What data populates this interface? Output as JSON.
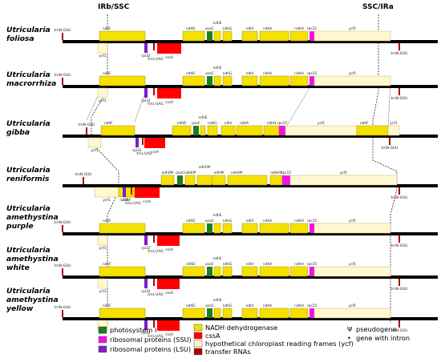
{
  "header": {
    "left": "IRb/SSC",
    "right": "SSC/IRa"
  },
  "colors": {
    "ndh": "#f5e000",
    "ycf": "#fff8d0",
    "psa": "#1e7d1e",
    "rps": "#f012e4",
    "rpl": "#7a1fc8",
    "css": "#ff0000",
    "trn": "#b00000",
    "line": "#000000"
  },
  "tracks": [
    {
      "name_lines": [
        "Utricularia",
        "foliosa"
      ],
      "blocks": [
        {
          "t": "ycf",
          "side": "b",
          "label": "ycf1",
          "la": "c",
          "s": 122,
          "e": 134
        },
        {
          "t": "trn",
          "side": "t",
          "label": "trnN-GUU",
          "la": "a",
          "s": 77,
          "e": 79
        },
        {
          "t": "ndh",
          "side": "t",
          "label": "ndhF",
          "la": "a",
          "s": 124,
          "e": 181
        },
        {
          "t": "rpl",
          "side": "b",
          "label": "rpl32",
          "la": "b",
          "s": 180,
          "e": 184
        },
        {
          "t": "trn",
          "side": "b",
          "label": "trnL-UAG",
          "la": "b",
          "s": 191,
          "e": 193
        },
        {
          "t": "css",
          "side": "b",
          "label": "",
          "la": "b",
          "s": 196,
          "e": 226
        },
        {
          "t": "ndh",
          "side": "t",
          "label": "ndhD",
          "la": "a",
          "s": 228,
          "e": 255
        },
        {
          "t": "psa",
          "side": "t",
          "label": "psaC",
          "la": "a",
          "s": 258,
          "e": 265
        },
        {
          "t": "ndh",
          "side": "t",
          "label": "ndhE",
          "la": "b",
          "s": 267,
          "e": 275
        },
        {
          "t": "ndh",
          "side": "t",
          "label": "ndhG",
          "la": "a",
          "s": 278,
          "e": 289
        },
        {
          "t": "ndh",
          "side": "t",
          "label": "ndhI",
          "la": "a",
          "s": 302,
          "e": 321
        },
        {
          "t": "ndh",
          "side": "t",
          "label": "ndhA",
          "la": "a",
          "s": 324,
          "e": 360
        },
        {
          "t": "ndh",
          "side": "t",
          "label": "ndhH",
          "la": "a",
          "s": 362,
          "e": 384
        },
        {
          "t": "rps",
          "side": "t",
          "label": "rps15",
          "la": "a",
          "s": 386,
          "e": 392
        },
        {
          "t": "ycf",
          "side": "t",
          "label": "ycf1",
          "la": "a",
          "s": 392,
          "e": 487
        },
        {
          "t": "trn",
          "side": "b",
          "label": "trnN-GUU",
          "la": "b",
          "s": 497,
          "e": 499
        }
      ],
      "extra": {
        "text": "cssA",
        "x": 211
      }
    },
    {
      "name_lines": [
        "Utricularia",
        "macrorrhiza"
      ],
      "blocks": [
        {
          "t": "ycf",
          "side": "b",
          "label": "ycf1",
          "la": "c",
          "s": 122,
          "e": 134
        },
        {
          "t": "trn",
          "side": "t",
          "label": "trnN-GUU",
          "la": "a",
          "s": 77,
          "e": 79
        },
        {
          "t": "ndh",
          "side": "t",
          "label": "ndhF",
          "la": "a",
          "s": 124,
          "e": 181
        },
        {
          "t": "rpl",
          "side": "b",
          "label": "rpl32",
          "la": "b",
          "s": 180,
          "e": 184
        },
        {
          "t": "trn",
          "side": "b",
          "label": "trnL-UAG",
          "la": "b",
          "s": 191,
          "e": 193
        },
        {
          "t": "css",
          "side": "b",
          "label": "",
          "la": "b",
          "s": 196,
          "e": 226
        },
        {
          "t": "ndh",
          "side": "t",
          "label": "ndhD",
          "la": "a",
          "s": 228,
          "e": 255
        },
        {
          "t": "psa",
          "side": "t",
          "label": "psaC",
          "la": "a",
          "s": 258,
          "e": 265
        },
        {
          "t": "ndh",
          "side": "t",
          "label": "ndhE",
          "la": "b",
          "s": 267,
          "e": 275
        },
        {
          "t": "ndh",
          "side": "t",
          "label": "ndhG",
          "la": "a",
          "s": 278,
          "e": 289
        },
        {
          "t": "ndh",
          "side": "t",
          "label": "ndhI",
          "la": "a",
          "s": 302,
          "e": 321
        },
        {
          "t": "ndh",
          "side": "t",
          "label": "ndhA",
          "la": "a",
          "s": 324,
          "e": 360
        },
        {
          "t": "ndh",
          "side": "t",
          "label": "ndhH",
          "la": "a",
          "s": 362,
          "e": 384
        },
        {
          "t": "rps",
          "side": "t",
          "label": "rps15",
          "la": "a",
          "s": 386,
          "e": 392
        },
        {
          "t": "ycf",
          "side": "t",
          "label": "ycf1",
          "la": "a",
          "s": 392,
          "e": 487
        },
        {
          "t": "trn",
          "side": "b",
          "label": "trnN-GUU",
          "la": "b",
          "s": 497,
          "e": 499
        }
      ],
      "extra": {
        "text": "cssA",
        "x": 211
      }
    },
    {
      "name_lines": [
        "Utricularia",
        "gibba"
      ],
      "blocks": [
        {
          "t": "ycf",
          "side": "b",
          "label": "ycf1",
          "la": "c",
          "s": 110,
          "e": 126
        },
        {
          "t": "trn",
          "side": "t",
          "label": "trnN-GUU",
          "la": "a",
          "s": 107,
          "e": 109
        },
        {
          "t": "ndh",
          "side": "t",
          "label": "ndhF",
          "la": "a",
          "s": 126,
          "e": 168
        },
        {
          "t": "rpl",
          "side": "b",
          "label": "rpl32",
          "la": "b",
          "s": 169,
          "e": 173
        },
        {
          "t": "trn",
          "side": "b",
          "label": "trnL-UAG",
          "la": "b",
          "s": 177,
          "e": 179
        },
        {
          "t": "css",
          "side": "b",
          "label": "",
          "la": "b",
          "s": 180,
          "e": 206
        },
        {
          "t": "ndh",
          "side": "t",
          "label": "ndhD",
          "la": "a",
          "s": 215,
          "e": 238
        },
        {
          "t": "psa",
          "side": "t",
          "label": "psaC",
          "la": "a",
          "s": 241,
          "e": 248
        },
        {
          "t": "ndh",
          "side": "t",
          "label": "ndhE",
          "la": "b",
          "s": 250,
          "e": 256
        },
        {
          "t": "ndh",
          "side": "t",
          "label": "ndhG",
          "la": "a",
          "s": 259,
          "e": 271
        },
        {
          "t": "ndh",
          "side": "t",
          "label": "ndhI",
          "la": "a",
          "s": 276,
          "e": 293
        },
        {
          "t": "ndh",
          "side": "t",
          "label": "ndhA",
          "la": "a",
          "s": 295,
          "e": 327
        },
        {
          "t": "ndh",
          "side": "t",
          "label": "ndhH",
          "la": "a",
          "s": 329,
          "e": 348
        },
        {
          "t": "rps",
          "side": "t",
          "label": "rps15",
          "la": "a",
          "s": 348,
          "e": 356
        },
        {
          "t": "ycf",
          "side": "t",
          "label": "ycf1",
          "la": "a",
          "s": 356,
          "e": 445
        },
        {
          "t": "ndh",
          "side": "t",
          "label": "ndhF",
          "la": "a",
          "s": 445,
          "e": 484
        },
        {
          "t": "ycf",
          "side": "t",
          "label": "ycf1",
          "la": "a",
          "s": 484,
          "e": 498
        },
        {
          "t": "trn",
          "side": "b",
          "label": "trnN-GUU",
          "la": "b",
          "s": 485,
          "e": 487
        }
      ],
      "extra": {
        "text": "cssA",
        "x": 193
      }
    },
    {
      "name_lines": [
        "Utricularia",
        "reniformis"
      ],
      "blocks": [
        {
          "t": "ycf",
          "side": "b",
          "label": "ycf1",
          "la": "c",
          "s": 118,
          "e": 148
        },
        {
          "t": "trn",
          "side": "t",
          "label": "trnN-GUU",
          "la": "a",
          "s": 103,
          "e": 105
        },
        {
          "t": "ndh",
          "side": "b",
          "label": "ndhF",
          "la": "b",
          "s": 148,
          "e": 168
        },
        {
          "t": "rpl",
          "side": "b",
          "label": "rpl32",
          "la": "b",
          "s": 153,
          "e": 157
        },
        {
          "t": "trn",
          "side": "b",
          "label": "trnL-UAG",
          "la": "b",
          "s": 163,
          "e": 165
        },
        {
          "t": "css",
          "side": "b",
          "label": "",
          "la": "b",
          "s": 168,
          "e": 199
        },
        {
          "t": "ndh",
          "side": "t",
          "label": "ndhDΨ",
          "la": "a",
          "s": 201,
          "e": 217
        },
        {
          "t": "psa",
          "side": "t",
          "label": "psaC",
          "la": "a",
          "s": 221,
          "e": 228
        },
        {
          "t": "ndh",
          "side": "t",
          "label": "ndhEΨ",
          "la": "a",
          "s": 231,
          "e": 243
        },
        {
          "t": "ndh",
          "side": "t",
          "label": "ndhGΨ",
          "la": "b",
          "s": 246,
          "e": 264
        },
        {
          "t": "ndh",
          "side": "t",
          "label": "ndhIΨ",
          "la": "a",
          "s": 265,
          "e": 281
        },
        {
          "t": "ndh",
          "side": "t",
          "label": "ndhAΨ",
          "la": "a",
          "s": 284,
          "e": 333
        },
        {
          "t": "ndh",
          "side": "t",
          "label": "ndhHΨ",
          "la": "a",
          "s": 337,
          "e": 352
        },
        {
          "t": "rps",
          "side": "t",
          "label": "rps15",
          "la": "a",
          "s": 352,
          "e": 362
        },
        {
          "t": "ycf",
          "side": "t",
          "label": "ycf1",
          "la": "a",
          "s": 362,
          "e": 495
        },
        {
          "t": "trn",
          "side": "b",
          "label": "trnN-GUU",
          "la": "b",
          "s": 497,
          "e": 499
        }
      ],
      "extra": {
        "text": "cssA",
        "x": 183
      }
    },
    {
      "name_lines": [
        "Utricularia",
        "amethystina",
        "purple"
      ],
      "blocks": [
        {
          "t": "ycf",
          "side": "b",
          "label": "ycf1",
          "la": "c",
          "s": 122,
          "e": 134
        },
        {
          "t": "trn",
          "side": "t",
          "label": "trnN-GUU",
          "la": "a",
          "s": 77,
          "e": 79
        },
        {
          "t": "ndh",
          "side": "t",
          "label": "ndhF",
          "la": "a",
          "s": 124,
          "e": 181
        },
        {
          "t": "rpl",
          "side": "b",
          "label": "rpl32",
          "la": "b",
          "s": 180,
          "e": 184
        },
        {
          "t": "trn",
          "side": "b",
          "label": "trnL-UAG",
          "la": "b",
          "s": 191,
          "e": 193
        },
        {
          "t": "css",
          "side": "b",
          "label": "",
          "la": "b",
          "s": 196,
          "e": 224
        },
        {
          "t": "ndh",
          "side": "t",
          "label": "ndhD",
          "la": "a",
          "s": 228,
          "e": 255
        },
        {
          "t": "psa",
          "side": "t",
          "label": "psaC",
          "la": "a",
          "s": 258,
          "e": 265
        },
        {
          "t": "ndh",
          "side": "t",
          "label": "ndhE",
          "la": "b",
          "s": 267,
          "e": 275
        },
        {
          "t": "ndh",
          "side": "t",
          "label": "ndhG",
          "la": "a",
          "s": 278,
          "e": 289
        },
        {
          "t": "ndh",
          "side": "t",
          "label": "ndhI",
          "la": "a",
          "s": 302,
          "e": 321
        },
        {
          "t": "ndh",
          "side": "t",
          "label": "ndhA",
          "la": "a",
          "s": 324,
          "e": 360
        },
        {
          "t": "ndh",
          "side": "t",
          "label": "ndhH",
          "la": "a",
          "s": 362,
          "e": 384
        },
        {
          "t": "rps",
          "side": "t",
          "label": "rps15",
          "la": "a",
          "s": 386,
          "e": 392
        },
        {
          "t": "ycf",
          "side": "t",
          "label": "ycf1",
          "la": "a",
          "s": 392,
          "e": 487
        },
        {
          "t": "trn",
          "side": "b",
          "label": "trnN-GUU",
          "la": "b",
          "s": 497,
          "e": 499
        }
      ],
      "extra": {
        "text": "cssA",
        "x": 211
      }
    },
    {
      "name_lines": [
        "Utricularia",
        "amethystina",
        "white"
      ],
      "blocks": [
        {
          "t": "ycf",
          "side": "b",
          "label": "ycf1",
          "la": "c",
          "s": 122,
          "e": 134
        },
        {
          "t": "trn",
          "side": "t",
          "label": "trnN-GUU",
          "la": "a",
          "s": 77,
          "e": 79
        },
        {
          "t": "ndh",
          "side": "t",
          "label": "ndhF",
          "la": "a",
          "s": 124,
          "e": 181
        },
        {
          "t": "rpl",
          "side": "b",
          "label": "rpl32",
          "la": "b",
          "s": 180,
          "e": 184
        },
        {
          "t": "trn",
          "side": "b",
          "label": "trnL-UAG",
          "la": "b",
          "s": 191,
          "e": 193
        },
        {
          "t": "css",
          "side": "b",
          "label": "",
          "la": "b",
          "s": 196,
          "e": 224
        },
        {
          "t": "ndh",
          "side": "t",
          "label": "ndhD",
          "la": "a",
          "s": 228,
          "e": 255
        },
        {
          "t": "psa",
          "side": "t",
          "label": "psaC",
          "la": "a",
          "s": 258,
          "e": 265
        },
        {
          "t": "ndh",
          "side": "t",
          "label": "ndhE",
          "la": "b",
          "s": 267,
          "e": 275
        },
        {
          "t": "ndh",
          "side": "t",
          "label": "ndhG",
          "la": "a",
          "s": 278,
          "e": 289
        },
        {
          "t": "ndh",
          "side": "t",
          "label": "ndhI",
          "la": "a",
          "s": 302,
          "e": 321
        },
        {
          "t": "ndh",
          "side": "t",
          "label": "ndhA",
          "la": "a",
          "s": 324,
          "e": 360
        },
        {
          "t": "ndh",
          "side": "t",
          "label": "ndhH",
          "la": "a",
          "s": 362,
          "e": 384
        },
        {
          "t": "rps",
          "side": "t",
          "label": "rps15",
          "la": "a",
          "s": 386,
          "e": 392
        },
        {
          "t": "ycf",
          "side": "t",
          "label": "ycf1",
          "la": "a",
          "s": 392,
          "e": 487
        },
        {
          "t": "trn",
          "side": "b",
          "label": "trnN-GUU",
          "la": "b",
          "s": 497,
          "e": 499
        }
      ],
      "extra": {
        "text": "cssA",
        "x": 211
      }
    },
    {
      "name_lines": [
        "Utricularia",
        "amethystina",
        "yellow"
      ],
      "blocks": [
        {
          "t": "ycf",
          "side": "b",
          "label": "ycf1",
          "la": "c",
          "s": 122,
          "e": 134
        },
        {
          "t": "trn",
          "side": "t",
          "label": "trnN-GUU",
          "la": "a",
          "s": 77,
          "e": 79
        },
        {
          "t": "ndh",
          "side": "t",
          "label": "ndhF",
          "la": "a",
          "s": 124,
          "e": 181
        },
        {
          "t": "rpl",
          "side": "b",
          "label": "rpl32",
          "la": "b",
          "s": 180,
          "e": 184
        },
        {
          "t": "trn",
          "side": "b",
          "label": "trnL-UAG",
          "la": "b",
          "s": 191,
          "e": 193
        },
        {
          "t": "css",
          "side": "b",
          "label": "",
          "la": "b",
          "s": 196,
          "e": 224
        },
        {
          "t": "ndh",
          "side": "t",
          "label": "ndhD",
          "la": "a",
          "s": 228,
          "e": 255
        },
        {
          "t": "psa",
          "side": "t",
          "label": "psaC",
          "la": "a",
          "s": 258,
          "e": 265
        },
        {
          "t": "ndh",
          "side": "t",
          "label": "ndhE",
          "la": "b",
          "s": 267,
          "e": 275
        },
        {
          "t": "ndh",
          "side": "t",
          "label": "ndhG",
          "la": "a",
          "s": 278,
          "e": 289
        },
        {
          "t": "ndh",
          "side": "t",
          "label": "ndhI",
          "la": "a",
          "s": 302,
          "e": 321
        },
        {
          "t": "ndh",
          "side": "t",
          "label": "ndhA",
          "la": "a",
          "s": 324,
          "e": 360
        },
        {
          "t": "ndh",
          "side": "t",
          "label": "ndhH",
          "la": "a",
          "s": 362,
          "e": 384
        },
        {
          "t": "rps",
          "side": "t",
          "label": "rps15",
          "la": "a",
          "s": 386,
          "e": 392
        },
        {
          "t": "ycf",
          "side": "t",
          "label": "ycf1",
          "la": "a",
          "s": 392,
          "e": 487
        },
        {
          "t": "trn",
          "side": "b",
          "label": "trnN-GUU",
          "la": "b",
          "s": 497,
          "e": 499
        }
      ],
      "extra": {
        "text": "cssA",
        "x": 211
      }
    }
  ],
  "legend": {
    "left": [
      {
        "t": "psa",
        "text": "photosystem I"
      },
      {
        "t": "rps",
        "text": "ribosomal proteins (SSU)"
      },
      {
        "t": "rpl",
        "text": "ribosomal proteins (LSU)"
      }
    ],
    "mid": [
      {
        "t": "ndh",
        "text": "NADH dehydrogenase"
      },
      {
        "t": "css",
        "text": "cssA"
      },
      {
        "t": "ycf",
        "text": "hypothetical chloroplast reading frames (ycf)"
      },
      {
        "t": "trn",
        "text": "transfer RNAs"
      }
    ],
    "right": [
      {
        "sym": "Ψ",
        "text": "pseudogene"
      },
      {
        "sym": "•",
        "text": "gene with intron"
      }
    ]
  }
}
